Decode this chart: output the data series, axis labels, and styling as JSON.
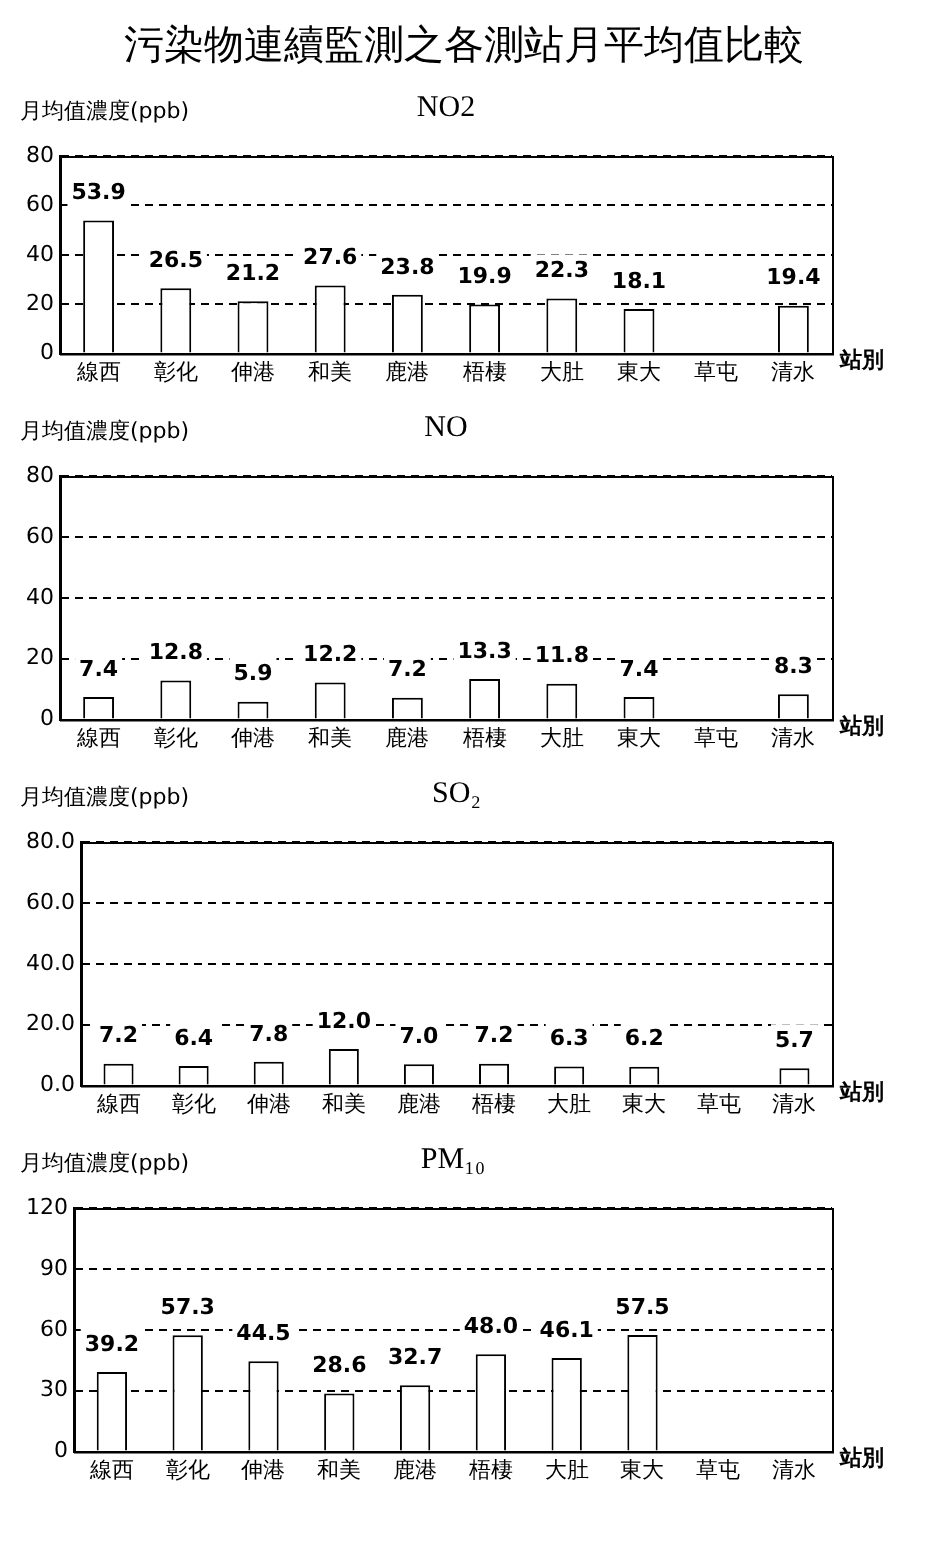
{
  "chart_data": [
    {
      "type": "bar",
      "title": "污染物連續監測之各測站月平均值比較",
      "subtitle": "NO2",
      "ylabel": "月均值濃度(ppb)",
      "xlabel": "站別",
      "categories": [
        "線西",
        "彰化",
        "伸港",
        "和美",
        "鹿港",
        "梧棲",
        "大肚",
        "東大",
        "草屯",
        "清水"
      ],
      "values": [
        53.9,
        26.5,
        21.2,
        27.6,
        23.8,
        19.9,
        22.3,
        18.1,
        null,
        19.4
      ],
      "color": "#ffffff",
      "ylim": [
        0,
        80
      ],
      "yticks": [
        0,
        20,
        40,
        60,
        80
      ],
      "grid": "y",
      "line_style": "dashed",
      "data_labels": true,
      "legend": false
    },
    {
      "type": "bar",
      "title": "NO",
      "ylabel": "月均值濃度(ppb)",
      "xlabel": "站別",
      "categories": [
        "線西",
        "彰化",
        "伸港",
        "和美",
        "鹿港",
        "梧棲",
        "大肚",
        "東大",
        "草屯",
        "清水"
      ],
      "values": [
        7.4,
        12.8,
        5.9,
        12.2,
        7.2,
        13.3,
        11.8,
        7.4,
        null,
        8.3
      ],
      "color": "#ffffff",
      "ylim": [
        0,
        80
      ],
      "yticks": [
        0,
        20,
        40,
        60,
        80
      ],
      "grid": "y",
      "line_style": "dashed",
      "data_labels": true,
      "legend": false
    },
    {
      "type": "bar",
      "title": "SO₂",
      "ylabel": "月均值濃度(ppb)",
      "xlabel": "站別",
      "categories": [
        "線西",
        "彰化",
        "伸港",
        "和美",
        "鹿港",
        "梧棲",
        "大肚",
        "東大",
        "草屯",
        "清水"
      ],
      "values": [
        7.2,
        6.4,
        7.8,
        12.0,
        7.0,
        7.2,
        6.3,
        6.2,
        null,
        5.7
      ],
      "value_labels": [
        "7.2",
        "6.4",
        "7.8",
        "12.0",
        "7.0",
        "7.2",
        "6.3",
        "6.2",
        null,
        "5.7"
      ],
      "color": "#ffffff",
      "ylim": [
        0,
        80
      ],
      "yticks": [
        {
          "value": 0,
          "label": "0.0"
        },
        {
          "value": 20,
          "label": "20.0"
        },
        {
          "value": 40,
          "label": "40.0"
        },
        {
          "value": 60,
          "label": "60.0"
        },
        {
          "value": 80,
          "label": "80.0"
        }
      ],
      "grid": "y",
      "line_style": "dashed",
      "legend": false
    },
    {
      "type": "bar",
      "title": "PM₁₀",
      "ylabel": "月均值濃度(ppb)",
      "xlabel": "站別",
      "categories": [
        "線西",
        "彰化",
        "伸港",
        "和美",
        "鹿港",
        "梧棲",
        "大肚",
        "東大",
        "草屯",
        "清水"
      ],
      "values": [
        39.2,
        57.3,
        44.5,
        28.6,
        32.7,
        48.0,
        46.1,
        57.5,
        null,
        null
      ],
      "value_labels": [
        "39.2",
        "57.3",
        "44.5",
        "28.6",
        "32.7",
        "48.0",
        "46.1",
        "57.5",
        null,
        null
      ],
      "color": "#ffffff",
      "ylim": [
        0,
        120
      ],
      "yticks": [
        0,
        30,
        60,
        90,
        120
      ],
      "grid": "y",
      "line_style": "dashed",
      "legend": false
    }
  ]
}
